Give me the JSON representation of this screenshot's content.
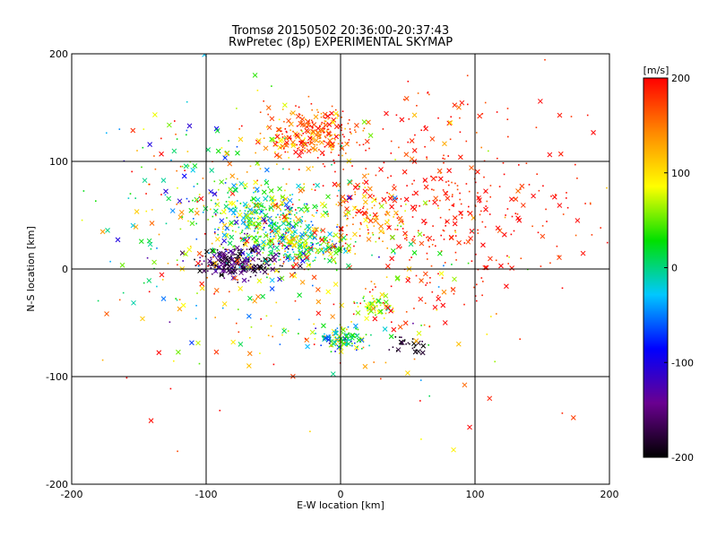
{
  "chart_data": {
    "type": "scatter",
    "title": "Tromsø 20150502 20:36:00-20:37:43",
    "subtitle": "RwPretec (8p) EXPERIMENTAL SKYMAP",
    "xlabel": "E-W location [km]",
    "ylabel": "N-S location [km]",
    "xlim": [
      -200,
      200
    ],
    "ylim": [
      -200,
      200
    ],
    "xticks": [
      -200,
      -100,
      0,
      100,
      200
    ],
    "yticks": [
      -200,
      -100,
      0,
      100,
      200
    ],
    "grid": true,
    "markers": [
      "x",
      "dot"
    ],
    "colorbar": {
      "label": "[m/s]",
      "range": [
        -200,
        200
      ],
      "ticks": [
        -200,
        -100,
        0,
        100,
        200
      ],
      "colormap": [
        "#000000",
        "#6a0090",
        "#0000ff",
        "#00c8ff",
        "#00e000",
        "#ffff00",
        "#ff8800",
        "#ff0000"
      ]
    },
    "clusters": [
      {
        "center": [
          -20,
          125
        ],
        "spread": [
          35,
          22
        ],
        "count": 260,
        "velocity_mean": 160,
        "velocity_spread": 70
      },
      {
        "center": [
          -55,
          45
        ],
        "spread": [
          35,
          30
        ],
        "count": 380,
        "velocity_mean": 20,
        "velocity_spread": 110
      },
      {
        "center": [
          -25,
          20
        ],
        "spread": [
          30,
          15
        ],
        "count": 200,
        "velocity_mean": 40,
        "velocity_spread": 110
      },
      {
        "center": [
          -75,
          5
        ],
        "spread": [
          30,
          15
        ],
        "count": 220,
        "velocity_mean": -170,
        "velocity_spread": 60
      },
      {
        "center": [
          0,
          -65
        ],
        "spread": [
          18,
          12
        ],
        "count": 120,
        "velocity_mean": 20,
        "velocity_spread": 100
      },
      {
        "center": [
          20,
          50
        ],
        "spread": [
          25,
          25
        ],
        "count": 100,
        "velocity_mean": 130,
        "velocity_spread": 90
      },
      {
        "center": [
          25,
          -35
        ],
        "spread": [
          12,
          8
        ],
        "count": 60,
        "velocity_mean": 60,
        "velocity_spread": 60
      },
      {
        "center": [
          80,
          60
        ],
        "spread": [
          90,
          90
        ],
        "count": 380,
        "velocity_mean": 190,
        "velocity_spread": 30
      },
      {
        "center": [
          -100,
          40
        ],
        "spread": [
          70,
          100
        ],
        "count": 280,
        "velocity_mean": 60,
        "velocity_spread": 150
      },
      {
        "center": [
          50,
          -70
        ],
        "spread": [
          15,
          10
        ],
        "count": 30,
        "velocity_mean": -190,
        "velocity_spread": 20
      },
      {
        "center": [
          0,
          0
        ],
        "spread": [
          130,
          130
        ],
        "count": 220,
        "velocity_mean": 120,
        "velocity_spread": 130
      }
    ]
  }
}
